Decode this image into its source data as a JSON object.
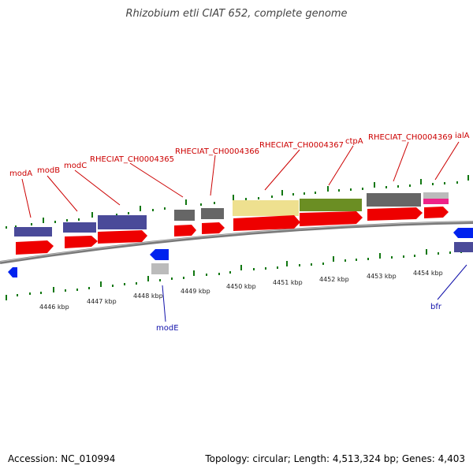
{
  "title": "Rhizobium etli CIAT 652, complete genome",
  "accession": "Accession: NC_010994",
  "stats": "Topology: circular; Length: 4,513,324 bp; Genes: 4,403",
  "kbp_labels": [
    "4446 kbp",
    "4447 kbp",
    "4448 kbp",
    "4449 kbp",
    "4450 kbp",
    "4451 kbp",
    "4452 kbp",
    "4453 kbp",
    "4454 kbp"
  ],
  "genes_top": [
    "modA",
    "modB",
    "modC",
    "RHECIAT_CH0004365",
    "RHECIAT_CH0004366",
    "RHECIAT_CH0004367",
    "ctpA",
    "RHECIAT_CH0004369",
    "ialA"
  ],
  "genes_bottom": [
    "modE",
    "bfr"
  ],
  "colors": {
    "cds": "#ee0000",
    "gene_purple": "#4a4a99",
    "gene_gray": "#666666",
    "gene_light_gray": "#bbbbbb",
    "gene_yellow": "#eee08f",
    "gene_green": "#6b8e23",
    "gene_pink": "#ee2288",
    "gene_blue": "#0022ee",
    "tick": "#117711",
    "label_top": "#cc0000",
    "label_bottom": "#1010aa"
  }
}
